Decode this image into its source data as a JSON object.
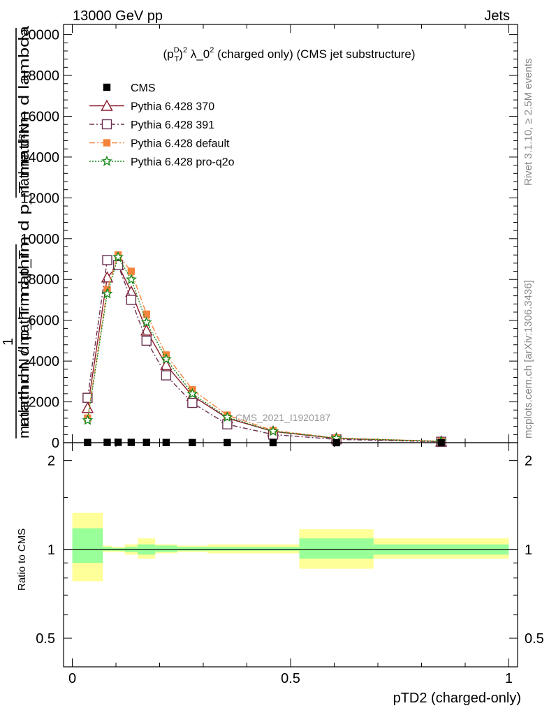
{
  "header": {
    "left": "13000 GeV pp",
    "right": "Jets"
  },
  "side_labels": {
    "rivet": "Rivet 3.1.10, ≥ 2.5M events",
    "mcplots": "mcplots.cern.ch [arXiv:1306.3436]"
  },
  "watermark": "CMS_2021_I1920187",
  "chart_data": [
    {
      "type": "line",
      "title": "(p_T^D)^2 λ_0^2 (charged only) (CMS jet substructure)",
      "title_parts": {
        "base": "(p",
        "sub": "T",
        "sup1": "D",
        "close": ")",
        "sup2": "2",
        "mid": " λ_0",
        "sup3": "2",
        "tail": " (charged only) (CMS jet substructure)"
      },
      "ylabel_top": "mathrm d²N",
      "ylabel_bottom": "mathrm d p_T mathrm d p_T mathrm d lambda",
      "ylabel_one": "1",
      "ylabel_denominator": "mathrm d N / mathrm d p_T",
      "xlim": [
        -0.02,
        1.02
      ],
      "ylim": [
        0,
        20500
      ],
      "yticks": [
        0,
        2000,
        4000,
        6000,
        8000,
        10000,
        12000,
        14000,
        16000,
        18000,
        20000
      ],
      "ytick_labels": [
        "0",
        "2000",
        "4000",
        "6000",
        "8000",
        "10000",
        "12000",
        "14000",
        "16000",
        "18000",
        "20000"
      ],
      "legend_position": "top-left",
      "series": [
        {
          "name": "CMS",
          "color": "#000000",
          "marker": "square-filled",
          "x": [
            0.035,
            0.08,
            0.105,
            0.135,
            0.17,
            0.215,
            0.275,
            0.355,
            0.46,
            0.605,
            0.845
          ],
          "y": [
            10,
            15,
            18,
            15,
            12,
            9,
            6,
            4,
            2,
            1,
            0.3
          ]
        },
        {
          "name": "Pythia 6.428 370",
          "color": "#8b1a2a",
          "marker": "triangle-open",
          "dash": "",
          "x": [
            0.035,
            0.08,
            0.105,
            0.135,
            0.17,
            0.215,
            0.275,
            0.355,
            0.46,
            0.605,
            0.845
          ],
          "y": [
            1700,
            8100,
            8700,
            7400,
            5500,
            3800,
            2300,
            1200,
            550,
            210,
            60
          ]
        },
        {
          "name": "Pythia 6.428 391",
          "color": "#6b3050",
          "marker": "square-open",
          "dash": "7,3,2,3",
          "x": [
            0.035,
            0.08,
            0.105,
            0.135,
            0.17,
            0.215,
            0.275,
            0.355,
            0.46,
            0.605,
            0.845
          ],
          "y": [
            2200,
            8950,
            8700,
            7000,
            5000,
            3300,
            1950,
            900,
            400,
            160,
            45
          ]
        },
        {
          "name": "Pythia 6.428 default",
          "color": "#f4843c",
          "marker": "square-filled",
          "dash": "8,3,2,3",
          "x": [
            0.035,
            0.08,
            0.105,
            0.135,
            0.17,
            0.215,
            0.275,
            0.355,
            0.46,
            0.605,
            0.845
          ],
          "y": [
            1200,
            7500,
            9200,
            8400,
            6300,
            4300,
            2600,
            1350,
            600,
            230,
            70
          ]
        },
        {
          "name": "Pythia 6.428 pro-q2o",
          "color": "#1a8a1a",
          "marker": "star-open",
          "dash": "2,2",
          "x": [
            0.035,
            0.08,
            0.105,
            0.135,
            0.17,
            0.215,
            0.275,
            0.355,
            0.46,
            0.605,
            0.845
          ],
          "y": [
            1100,
            7300,
            9100,
            8000,
            5900,
            4100,
            2400,
            1250,
            560,
            220,
            65
          ]
        }
      ]
    },
    {
      "type": "area",
      "ylabel": "Ratio to CMS",
      "xlabel": "pTD2 (charged-only)",
      "xlim": [
        -0.02,
        1.02
      ],
      "ylim": [
        0.4,
        2.3
      ],
      "scale": "log",
      "xticks": [
        0,
        0.5,
        1
      ],
      "xtick_labels": [
        "0",
        "0.5",
        "1"
      ],
      "yticks": [
        0.5,
        1,
        2
      ],
      "ytick_labels": [
        "0.5",
        "1",
        "2"
      ],
      "bands": {
        "colors": {
          "total": "#ffff99",
          "stat": "#99ff99"
        },
        "bins": [
          {
            "x0": 0.0,
            "x1": 0.07,
            "total": [
              0.78,
              1.33
            ],
            "stat": [
              0.9,
              1.18
            ]
          },
          {
            "x0": 0.07,
            "x1": 0.09,
            "total": [
              0.98,
              1.03
            ],
            "stat": [
              0.99,
              1.02
            ]
          },
          {
            "x0": 0.09,
            "x1": 0.12,
            "total": [
              0.98,
              1.02
            ],
            "stat": [
              0.99,
              1.01
            ]
          },
          {
            "x0": 0.12,
            "x1": 0.15,
            "total": [
              0.96,
              1.04
            ],
            "stat": [
              0.98,
              1.02
            ]
          },
          {
            "x0": 0.15,
            "x1": 0.19,
            "total": [
              0.93,
              1.09
            ],
            "stat": [
              0.96,
              1.04
            ]
          },
          {
            "x0": 0.19,
            "x1": 0.24,
            "total": [
              0.97,
              1.04
            ],
            "stat": [
              0.98,
              1.03
            ]
          },
          {
            "x0": 0.24,
            "x1": 0.31,
            "total": [
              0.98,
              1.03
            ],
            "stat": [
              0.99,
              1.02
            ]
          },
          {
            "x0": 0.31,
            "x1": 0.52,
            "total": [
              0.97,
              1.04
            ],
            "stat": [
              0.99,
              1.02
            ]
          },
          {
            "x0": 0.52,
            "x1": 0.69,
            "total": [
              0.86,
              1.17
            ],
            "stat": [
              0.93,
              1.09
            ]
          },
          {
            "x0": 0.69,
            "x1": 1.0,
            "total": [
              0.93,
              1.09
            ],
            "stat": [
              0.96,
              1.04
            ]
          }
        ]
      }
    }
  ]
}
